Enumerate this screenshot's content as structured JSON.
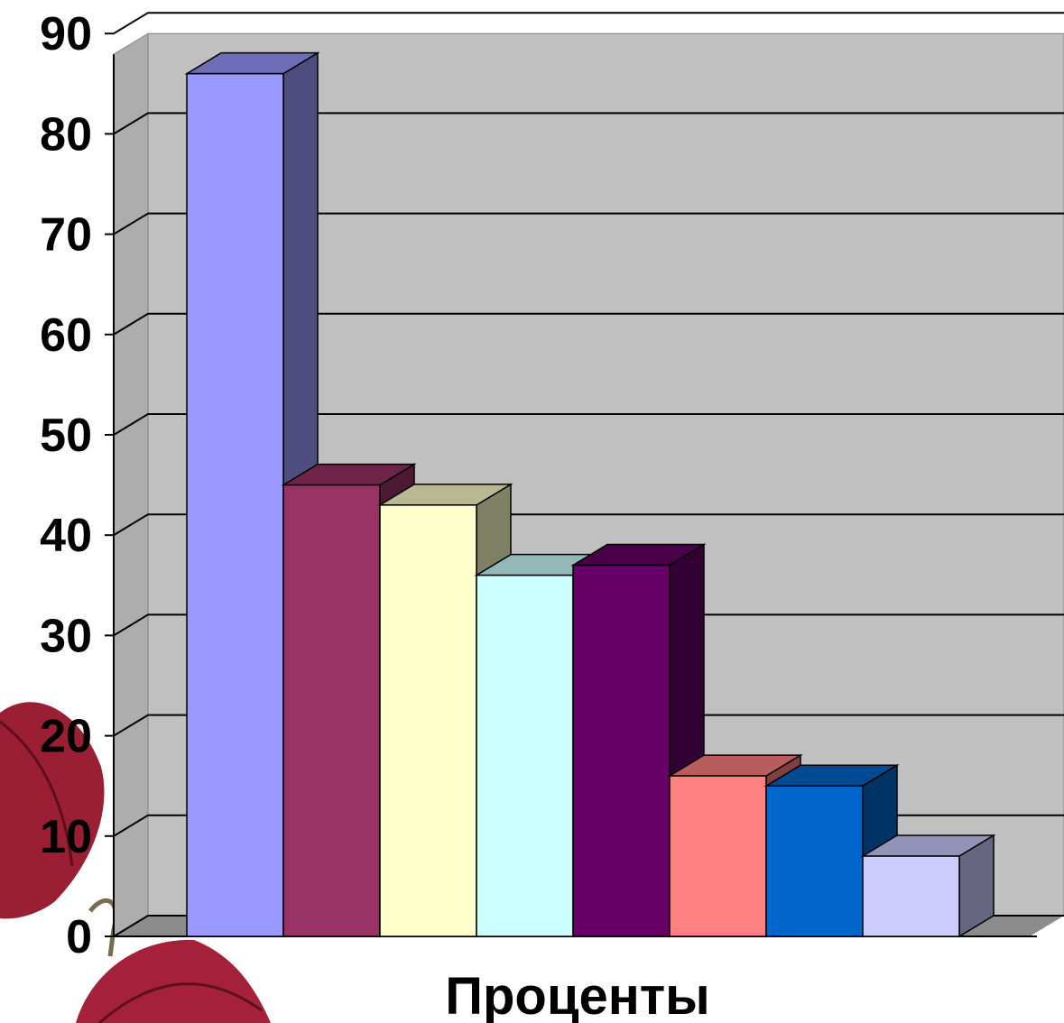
{
  "chart_data": {
    "type": "bar",
    "style": "3d-clustered",
    "xlabel": "Проценты",
    "ylabel": "",
    "ylim": [
      0,
      90
    ],
    "yticks": [
      0,
      10,
      20,
      30,
      40,
      50,
      60,
      70,
      80,
      90
    ],
    "grid": true,
    "legend": "none",
    "values": [
      86,
      45,
      43,
      36,
      37,
      16,
      15,
      8
    ],
    "colors": {
      "wall": "#c0c0c0",
      "floor": "#8c8c8c",
      "series": [
        "#9999ff",
        "#993366",
        "#ffffcc",
        "#ccffff",
        "#660066",
        "#ff8080",
        "#0066cc",
        "#ccccff"
      ]
    }
  }
}
